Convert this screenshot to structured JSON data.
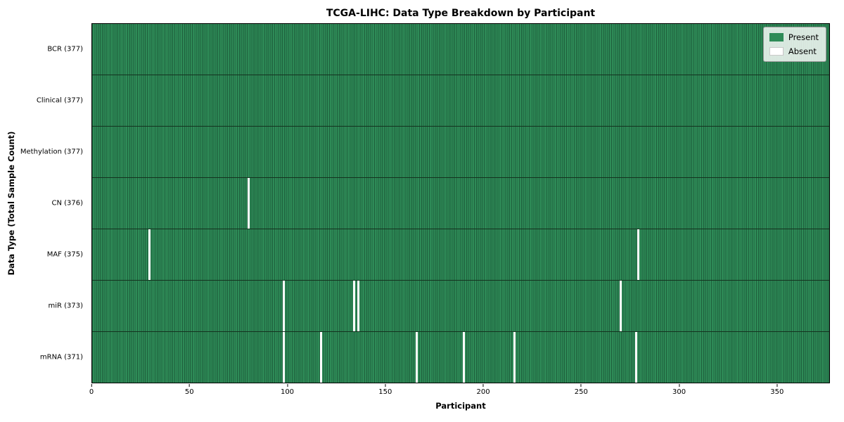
{
  "chart_data": {
    "type": "heatmap",
    "title": "TCGA-LIHC: Data Type Breakdown by Participant",
    "xlabel": "Participant",
    "ylabel": "Data Type (Total Sample Count)",
    "x_range": [
      0,
      377
    ],
    "x_ticks": [
      0,
      50,
      100,
      150,
      200,
      250,
      300,
      350
    ],
    "grid": "cell-edges",
    "rows": [
      {
        "label": "BCR (377)",
        "data_type": "BCR",
        "total": 377,
        "absent_participants": []
      },
      {
        "label": "Clinical (377)",
        "data_type": "Clinical",
        "total": 377,
        "absent_participants": []
      },
      {
        "label": "Methylation (377)",
        "data_type": "Methylation",
        "total": 377,
        "absent_participants": []
      },
      {
        "label": "CN (376)",
        "data_type": "CN",
        "total": 376,
        "absent_participants": [
          80
        ]
      },
      {
        "label": "MAF (375)",
        "data_type": "MAF",
        "total": 375,
        "absent_participants": [
          29,
          279
        ]
      },
      {
        "label": "miR (373)",
        "data_type": "miR",
        "total": 373,
        "absent_participants": [
          98,
          134,
          136,
          270
        ]
      },
      {
        "label": "mRNA (371)",
        "data_type": "mRNA",
        "total": 371,
        "absent_participants": [
          98,
          117,
          166,
          190,
          216,
          278
        ]
      }
    ],
    "colors": {
      "present": "#2e8b57",
      "absent": "#ffffff",
      "grid_edge": "#1e5f3c"
    },
    "legend": {
      "position": "upper right",
      "present_label": "Present",
      "absent_label": "Absent"
    }
  }
}
